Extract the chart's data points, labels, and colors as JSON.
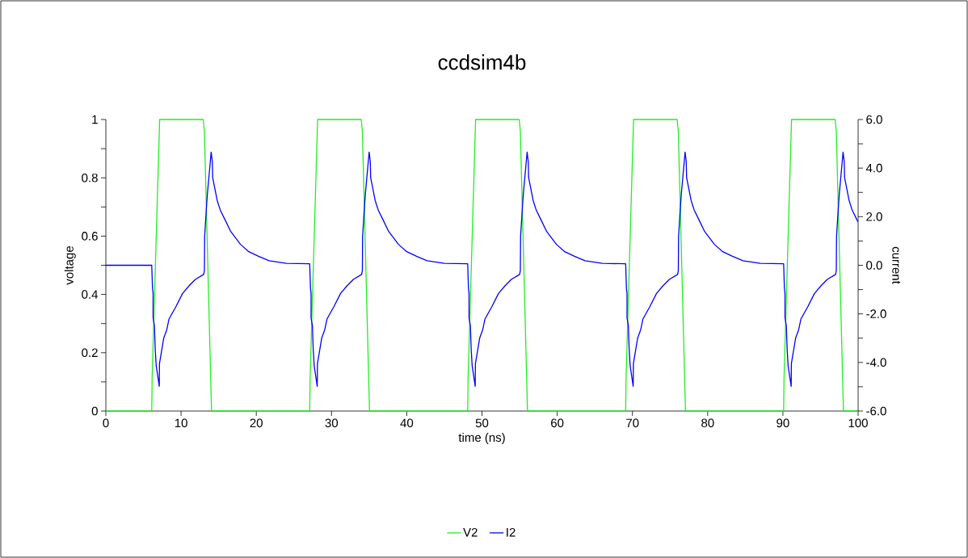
{
  "chart_data": {
    "type": "line",
    "title": "ccdsim4b",
    "xlabel": "time (ns)",
    "ylabel": "voltage",
    "y2label": "current",
    "xlim": [
      0,
      100
    ],
    "xticks": [
      0,
      10,
      20,
      30,
      40,
      50,
      60,
      70,
      80,
      90,
      100
    ],
    "ylim": [
      0,
      1
    ],
    "yticks": [
      0,
      {
        "value": 0.1,
        "label": null
      },
      0.2,
      {
        "value": 0.3,
        "label": null
      },
      0.4,
      {
        "value": 0.5,
        "label": null
      },
      0.6,
      {
        "value": 0.7,
        "label": null
      },
      0.8,
      {
        "value": 0.9,
        "label": null
      },
      1
    ],
    "y2lim": [
      -6,
      6
    ],
    "y2ticks": [
      {
        "value": -6,
        "label": "-6.0"
      },
      {
        "value": -5,
        "label": null
      },
      {
        "value": -4,
        "label": "-4.0"
      },
      {
        "value": -3,
        "label": null
      },
      {
        "value": -2,
        "label": "-2.0"
      },
      {
        "value": -1,
        "label": null
      },
      {
        "value": 0,
        "label": "0.0"
      },
      {
        "value": 1,
        "label": null
      },
      {
        "value": 2,
        "label": "2.0"
      },
      {
        "value": 3,
        "label": null
      },
      {
        "value": 4,
        "label": "4.0"
      },
      {
        "value": 5,
        "label": null
      },
      {
        "value": 6,
        "label": "6.0"
      }
    ],
    "grid": false,
    "legend": "bottom",
    "marker": "none",
    "line_style": "solid",
    "series": [
      {
        "name": "V2",
        "color": "#22ee22",
        "x": [
          0,
          6.1,
          6.15,
          7.15,
          12.95,
          13.1,
          14.05,
          27.1,
          27.15,
          28.15,
          33.95,
          34.1,
          35.05,
          48.1,
          48.15,
          49.15,
          54.95,
          55.1,
          56.05,
          69.1,
          69.15,
          70.15,
          75.95,
          76.1,
          77.05,
          90.1,
          90.15,
          91.15,
          96.95,
          97.1,
          98.05,
          100
        ],
        "values": [
          0,
          0,
          0.11,
          1,
          1,
          0.96,
          0,
          0,
          0.11,
          1,
          1,
          0.96,
          0,
          0,
          0.11,
          1,
          1,
          0.96,
          0,
          0,
          0.11,
          1,
          1,
          0.96,
          0,
          0,
          0.11,
          1,
          1,
          0.96,
          0,
          0
        ]
      },
      {
        "name": "I2",
        "color": "#0000ff",
        "axis": "y2",
        "x": [
          0,
          6.1,
          6.2,
          6.28,
          6.28,
          6.46,
          6.57,
          6.7,
          7.1,
          7.13,
          7.7,
          8.1,
          8.4,
          9.3,
          10.2,
          11.1,
          11.9,
          13.0,
          13.1,
          13.13,
          13.35,
          13.5,
          14.0,
          14.15,
          14.2,
          14.8,
          15.2,
          15.8,
          16.6,
          17.9,
          19.0,
          20.3,
          21.7,
          24.0,
          27.1,
          27.2,
          27.28,
          27.28,
          27.46,
          27.57,
          27.7,
          28.1,
          28.13,
          28.7,
          29.1,
          29.4,
          30.3,
          31.2,
          32.1,
          32.9,
          34.0,
          34.1,
          34.13,
          34.35,
          34.5,
          35.0,
          35.15,
          35.2,
          35.8,
          36.2,
          36.8,
          37.6,
          38.9,
          40.0,
          41.3,
          42.7,
          45.0,
          48.1,
          48.2,
          48.28,
          48.28,
          48.46,
          48.57,
          48.7,
          49.1,
          49.13,
          49.7,
          50.1,
          50.4,
          51.3,
          52.2,
          53.1,
          53.9,
          55.0,
          55.1,
          55.13,
          55.35,
          55.5,
          56.0,
          56.15,
          56.2,
          56.8,
          57.2,
          57.8,
          58.6,
          59.9,
          61.0,
          62.3,
          63.7,
          66.0,
          69.1,
          69.2,
          69.28,
          69.28,
          69.46,
          69.57,
          69.7,
          70.1,
          70.13,
          70.7,
          71.1,
          71.4,
          72.3,
          73.2,
          74.1,
          74.9,
          76.0,
          76.1,
          76.13,
          76.35,
          76.5,
          77.0,
          77.15,
          77.2,
          77.8,
          78.2,
          78.8,
          79.6,
          80.9,
          82.0,
          83.3,
          84.7,
          87.0,
          90.1,
          90.2,
          90.28,
          90.28,
          90.46,
          90.57,
          90.7,
          91.1,
          91.13,
          91.7,
          92.1,
          92.4,
          93.3,
          94.2,
          95.1,
          95.9,
          97.0,
          97.1,
          97.13,
          97.35,
          97.5,
          98.0,
          98.15,
          98.2,
          98.8,
          99.2,
          99.8,
          100
        ],
        "values": [
          0,
          0,
          -0.94,
          -1.16,
          -2.16,
          -2.5,
          -3.49,
          -4.15,
          -4.98,
          -4.04,
          -2.99,
          -2.65,
          -2.21,
          -1.71,
          -1.16,
          -0.83,
          -0.58,
          -0.38,
          -0.22,
          1.17,
          2.28,
          2.94,
          4.66,
          4.27,
          3.61,
          2.67,
          2.28,
          1.9,
          1.39,
          0.86,
          0.56,
          0.37,
          0.19,
          0.08,
          0.06,
          -0.94,
          -1.16,
          -2.16,
          -2.5,
          -3.49,
          -4.15,
          -4.98,
          -4.04,
          -2.99,
          -2.65,
          -2.21,
          -1.71,
          -1.16,
          -0.83,
          -0.58,
          -0.38,
          -0.22,
          1.17,
          2.28,
          2.94,
          4.66,
          4.27,
          3.61,
          2.67,
          2.28,
          1.9,
          1.39,
          0.86,
          0.56,
          0.37,
          0.19,
          0.08,
          0.06,
          -0.94,
          -1.16,
          -2.16,
          -2.5,
          -3.49,
          -4.15,
          -4.98,
          -4.04,
          -2.99,
          -2.65,
          -2.21,
          -1.71,
          -1.16,
          -0.83,
          -0.58,
          -0.38,
          -0.22,
          1.17,
          2.28,
          2.94,
          4.66,
          4.27,
          3.61,
          2.67,
          2.28,
          1.9,
          1.39,
          0.86,
          0.56,
          0.37,
          0.19,
          0.08,
          0.06,
          -0.94,
          -1.16,
          -2.16,
          -2.5,
          -3.49,
          -4.15,
          -4.98,
          -4.04,
          -2.99,
          -2.65,
          -2.21,
          -1.71,
          -1.16,
          -0.83,
          -0.58,
          -0.38,
          -0.22,
          1.17,
          2.28,
          2.94,
          4.66,
          4.27,
          3.61,
          2.67,
          2.28,
          1.9,
          1.39,
          0.86,
          0.56,
          0.37,
          0.19,
          0.08,
          0.06,
          -0.94,
          -1.16,
          -2.16,
          -2.5,
          -3.49,
          -4.15,
          -4.98,
          -4.04,
          -2.99,
          -2.65,
          -2.21,
          -1.71,
          -1.16,
          -0.83,
          -0.58,
          -0.38,
          -0.22,
          1.17,
          2.28,
          2.94,
          4.66,
          4.27,
          3.61,
          2.67,
          2.28,
          1.9,
          1.78
        ]
      }
    ]
  }
}
